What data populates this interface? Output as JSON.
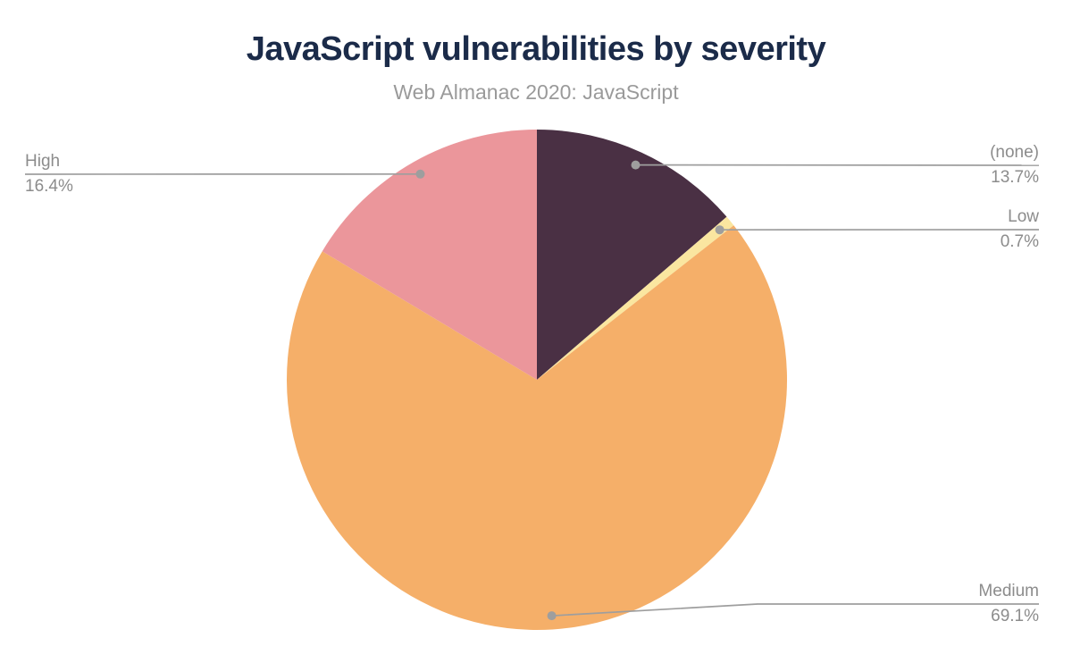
{
  "header": {
    "title": "JavaScript vulnerabilities by severity",
    "subtitle": "Web Almanac 2020: JavaScript"
  },
  "colors": {
    "background": "#FFFFFF",
    "title_text": "#1B2B49",
    "subtitle_text": "#9A9A9A",
    "label_text": "#8C8C8C",
    "leader_line": "#9E9E9E",
    "leader_dot": "#9E9E9E"
  },
  "chart_data": {
    "type": "pie",
    "title": "JavaScript vulnerabilities by severity",
    "subtitle": "Web Almanac 2020: JavaScript",
    "direction": "clockwise",
    "start_angle_deg": 0,
    "legend_position": "none",
    "slices": [
      {
        "label": "(none)",
        "value": 13.7,
        "pct_label": "13.7%",
        "color": "#4A3044"
      },
      {
        "label": "Low",
        "value": 0.7,
        "pct_label": "0.7%",
        "color": "#FAE6A0"
      },
      {
        "label": "Medium",
        "value": 69.1,
        "pct_label": "69.1%",
        "color": "#F5AF69"
      },
      {
        "label": "High",
        "value": 16.4,
        "pct_label": "16.4%",
        "color": "#EB969B"
      }
    ]
  }
}
